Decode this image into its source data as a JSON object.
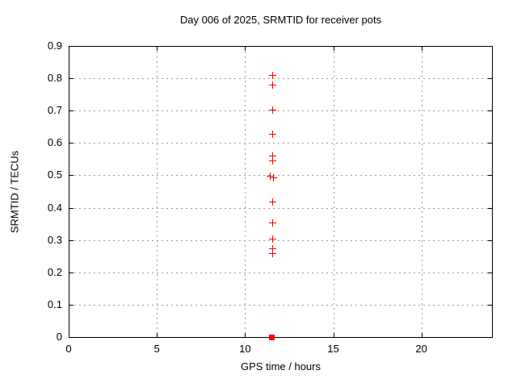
{
  "window": {
    "background": "#ffffff"
  },
  "chart_data": {
    "type": "scatter",
    "title": "Day 006 of 2025, SRMTID for receiver pots",
    "xlabel": "GPS time / hours",
    "ylabel": "SRMTID / TECUs",
    "xlim": [
      0,
      24
    ],
    "ylim": [
      0,
      0.9
    ],
    "x_tick_values": [
      0,
      5,
      10,
      15,
      20
    ],
    "x_tick_labels": [
      "0",
      "5",
      "10",
      "15",
      "20"
    ],
    "y_tick_values": [
      0,
      0.1,
      0.2,
      0.3,
      0.4,
      0.5,
      0.6,
      0.7,
      0.8,
      0.9
    ],
    "y_tick_labels": [
      "0",
      "0.1",
      "0.2",
      "0.3",
      "0.4",
      "0.5",
      "0.6",
      "0.7",
      "0.8",
      "0.9"
    ],
    "grid": true,
    "grid_style": "dashed",
    "legend": "none",
    "colors": {
      "marker": "#ff0000",
      "axis": "#000000",
      "grid": "#9b9b9b",
      "background": "#ffffff",
      "text": "#000000"
    },
    "series": [
      {
        "name": "SRMTID points",
        "marker": "plus",
        "color": "#ff0000",
        "points": [
          [
            11.55,
            0.81
          ],
          [
            11.55,
            0.779
          ],
          [
            11.55,
            0.701
          ],
          [
            11.55,
            0.626
          ],
          [
            11.55,
            0.56
          ],
          [
            11.55,
            0.545
          ],
          [
            11.45,
            0.497
          ],
          [
            11.62,
            0.493
          ],
          [
            11.55,
            0.417
          ],
          [
            11.55,
            0.354
          ],
          [
            11.55,
            0.302
          ],
          [
            11.55,
            0.272
          ],
          [
            11.55,
            0.257
          ]
        ]
      },
      {
        "name": "zero value point",
        "marker": "filled-square",
        "color": "#ff0000",
        "points": [
          [
            11.5,
            0.0
          ]
        ]
      }
    ]
  }
}
